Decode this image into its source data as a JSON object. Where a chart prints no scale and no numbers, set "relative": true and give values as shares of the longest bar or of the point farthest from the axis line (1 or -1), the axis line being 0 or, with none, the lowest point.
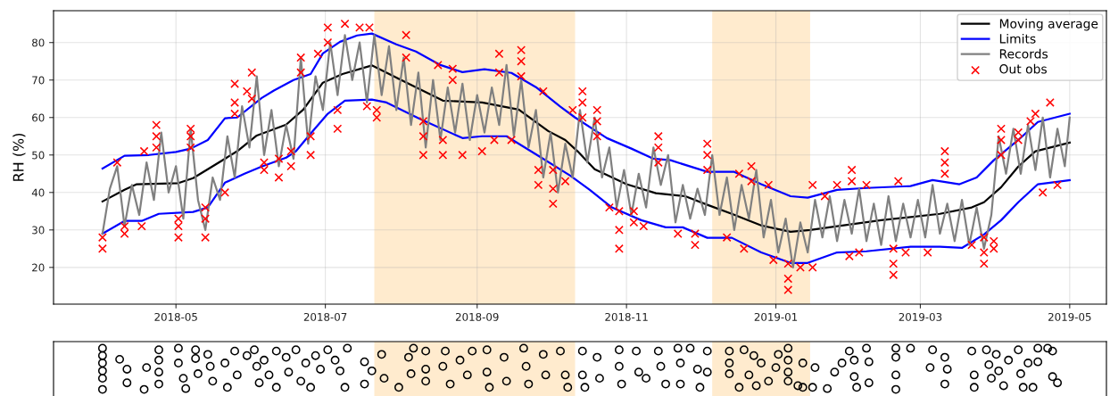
{
  "chart_data": [
    {
      "type": "line",
      "ylabel": "RH (%)",
      "xlim": [
        "2018-03-12",
        "2019-05-16"
      ],
      "ylim": [
        10.2,
        88.5
      ],
      "xticks": [
        "2018-05",
        "2018-07",
        "2018-09",
        "2018-11",
        "2019-01",
        "2019-03",
        "2019-05"
      ],
      "yticks": [
        20,
        30,
        40,
        50,
        60,
        70,
        80
      ],
      "grid": true,
      "legend": "top right",
      "bands": [
        {
          "axis": "x",
          "from": "2018-07-21",
          "to": "2018-10-11",
          "color": "#ffdead"
        },
        {
          "axis": "x",
          "from": "2018-12-06",
          "to": "2019-01-15",
          "color": "#ffdead"
        }
      ],
      "series": [
        {
          "name": "Moving average",
          "type": "line",
          "color": "#000000",
          "x": [
            "2018-04-01",
            "2018-04-10",
            "2018-04-15",
            "2018-05-02",
            "2018-05-08",
            "2018-05-14",
            "2018-05-26",
            "2018-06-03",
            "2018-06-15",
            "2018-06-22",
            "2018-06-30",
            "2018-07-08",
            "2018-07-20",
            "2018-08-01",
            "2018-08-18",
            "2018-09-03",
            "2018-09-18",
            "2018-09-30",
            "2018-10-07",
            "2018-10-12",
            "2018-10-19",
            "2018-11-01",
            "2018-11-13",
            "2018-11-25",
            "2018-12-04",
            "2018-12-14",
            "2018-12-26",
            "2019-01-07",
            "2019-01-15",
            "2019-02-13",
            "2019-03-09",
            "2019-03-22",
            "2019-03-27",
            "2019-04-03",
            "2019-04-10",
            "2019-04-17",
            "2019-05-01"
          ],
          "values": [
            37.6,
            40.7,
            42.2,
            42.5,
            43.8,
            46.2,
            51,
            55.2,
            58.1,
            62.1,
            69.3,
            71.6,
            73.9,
            70,
            64.5,
            64,
            62.1,
            56.4,
            54,
            51,
            46.2,
            42.2,
            39.8,
            39,
            36.7,
            34.3,
            31.2,
            29.5,
            30,
            32.6,
            34.3,
            36,
            37.4,
            41.4,
            46.9,
            51,
            53.3
          ]
        },
        {
          "name": "Limits",
          "type": "line",
          "color": "#0000ff",
          "x": [
            "2018-04-01",
            "2018-04-10",
            "2018-04-20",
            "2018-05-01",
            "2018-05-07",
            "2018-05-14",
            "2018-05-21",
            "2018-05-26",
            "2018-06-05",
            "2018-06-10",
            "2018-06-18",
            "2018-06-25",
            "2018-06-30",
            "2018-07-07",
            "2018-07-14",
            "2018-07-20",
            "2018-07-30",
            "2018-08-07",
            "2018-08-17",
            "2018-08-26",
            "2018-09-04",
            "2018-09-15",
            "2018-09-25",
            "2018-10-05",
            "2018-10-11",
            "2018-10-24",
            "2018-11-03",
            "2018-11-12",
            "2018-11-19",
            "2018-12-04",
            "2018-12-15",
            "2018-12-26",
            "2019-01-07",
            "2019-01-14",
            "2019-01-26",
            "2019-02-07",
            "2019-02-25",
            "2019-03-06",
            "2019-03-17",
            "2019-03-24",
            "2019-03-31",
            "2019-04-10",
            "2019-04-18",
            "2019-05-01"
          ],
          "values": [
            46.4,
            49.8,
            50,
            50.8,
            51.7,
            54,
            59.8,
            60,
            65.2,
            67.2,
            70,
            71.6,
            77.1,
            80.2,
            81.9,
            82.4,
            79.5,
            77.6,
            74,
            72.1,
            72.9,
            71.9,
            68.1,
            62.9,
            60,
            54.5,
            51.7,
            49,
            48.6,
            45.5,
            45.5,
            42.2,
            39,
            38.6,
            40.7,
            41.2,
            41.7,
            43.3,
            42.2,
            44,
            48.6,
            54,
            58.8,
            61
          ]
        },
        {
          "type": "line",
          "color": "#0000ff",
          "x": [
            "2018-04-01",
            "2018-04-10",
            "2018-04-17",
            "2018-04-24",
            "2018-05-08",
            "2018-05-14",
            "2018-05-21",
            "2018-05-29",
            "2018-06-05",
            "2018-06-15",
            "2018-06-19",
            "2018-06-25",
            "2018-07-02",
            "2018-07-09",
            "2018-07-20",
            "2018-07-26",
            "2018-08-08",
            "2018-08-26",
            "2018-09-03",
            "2018-09-13",
            "2018-09-25",
            "2018-10-09",
            "2018-10-17",
            "2018-10-26",
            "2018-11-07",
            "2018-11-17",
            "2018-11-24",
            "2018-12-04",
            "2018-12-14",
            "2018-12-26",
            "2019-01-07",
            "2019-01-14",
            "2019-01-26",
            "2019-02-07",
            "2019-02-25",
            "2019-03-09",
            "2019-03-18",
            "2019-03-27",
            "2019-04-03",
            "2019-04-10",
            "2019-04-18",
            "2019-05-01"
          ],
          "values": [
            29,
            32.4,
            32.4,
            34.3,
            34.8,
            36,
            42.6,
            45,
            46.9,
            49.3,
            51,
            55.7,
            61,
            64.5,
            64.8,
            64,
            59.8,
            54.5,
            55,
            55,
            50.2,
            44.5,
            40.7,
            36,
            32.6,
            30.7,
            30.7,
            27.9,
            27.9,
            24,
            21.2,
            21.2,
            24,
            24.3,
            25.5,
            25.5,
            25.2,
            28.8,
            32.6,
            37.4,
            42.2,
            43.3
          ]
        },
        {
          "name": "Records",
          "type": "line",
          "color": "#808080",
          "x": [
            "2018-04-01",
            "2018-04-04",
            "2018-04-07",
            "2018-04-10",
            "2018-04-13",
            "2018-04-16",
            "2018-04-19",
            "2018-04-22",
            "2018-04-25",
            "2018-04-28",
            "2018-05-01",
            "2018-05-04",
            "2018-05-07",
            "2018-05-10",
            "2018-05-13",
            "2018-05-16",
            "2018-05-19",
            "2018-05-22",
            "2018-05-25",
            "2018-05-28",
            "2018-05-31",
            "2018-06-03",
            "2018-06-06",
            "2018-06-09",
            "2018-06-12",
            "2018-06-15",
            "2018-06-18",
            "2018-06-21",
            "2018-06-24",
            "2018-06-27",
            "2018-06-30",
            "2018-07-03",
            "2018-07-06",
            "2018-07-09",
            "2018-07-12",
            "2018-07-15",
            "2018-07-18",
            "2018-07-21",
            "2018-07-24",
            "2018-07-27",
            "2018-07-30",
            "2018-08-02",
            "2018-08-05",
            "2018-08-08",
            "2018-08-11",
            "2018-08-14",
            "2018-08-17",
            "2018-08-20",
            "2018-08-23",
            "2018-08-26",
            "2018-08-29",
            "2018-09-01",
            "2018-09-04",
            "2018-09-07",
            "2018-09-10",
            "2018-09-13",
            "2018-09-16",
            "2018-09-19",
            "2018-09-22",
            "2018-09-25",
            "2018-09-28",
            "2018-10-01",
            "2018-10-04",
            "2018-10-07",
            "2018-10-10",
            "2018-10-13",
            "2018-10-16",
            "2018-10-19",
            "2018-10-22",
            "2018-10-25",
            "2018-10-28",
            "2018-10-31",
            "2018-11-03",
            "2018-11-06",
            "2018-11-09",
            "2018-11-12",
            "2018-11-15",
            "2018-11-18",
            "2018-11-21",
            "2018-11-24",
            "2018-11-27",
            "2018-11-30",
            "2018-12-03",
            "2018-12-06",
            "2018-12-09",
            "2018-12-12",
            "2018-12-15",
            "2018-12-18",
            "2018-12-21",
            "2018-12-24",
            "2018-12-27",
            "2018-12-30",
            "2019-01-02",
            "2019-01-05",
            "2019-01-08",
            "2019-01-11",
            "2019-01-14",
            "2019-01-17",
            "2019-01-20",
            "2019-01-23",
            "2019-01-26",
            "2019-01-29",
            "2019-02-01",
            "2019-02-04",
            "2019-02-07",
            "2019-02-10",
            "2019-02-13",
            "2019-02-16",
            "2019-02-19",
            "2019-02-22",
            "2019-02-25",
            "2019-02-28",
            "2019-03-03",
            "2019-03-06",
            "2019-03-09",
            "2019-03-12",
            "2019-03-15",
            "2019-03-18",
            "2019-03-21",
            "2019-03-24",
            "2019-03-27",
            "2019-03-30",
            "2019-04-02",
            "2019-04-05",
            "2019-04-08",
            "2019-04-11",
            "2019-04-14",
            "2019-04-17",
            "2019-04-20",
            "2019-04-23",
            "2019-04-26",
            "2019-04-29",
            "2019-05-01"
          ],
          "values": [
            29,
            41,
            47,
            31,
            42,
            34,
            48,
            38,
            56,
            40,
            47,
            33,
            57,
            38,
            30,
            44,
            38,
            55,
            44,
            63,
            52,
            71,
            50,
            62,
            47,
            58,
            49,
            76,
            53,
            71,
            62,
            80,
            66,
            82,
            70,
            80,
            64,
            82,
            66,
            79,
            62,
            76,
            58,
            72,
            52,
            70,
            54,
            68,
            56,
            69,
            54,
            66,
            56,
            68,
            58,
            74,
            55,
            70,
            52,
            62,
            44,
            56,
            40,
            53,
            44,
            62,
            48,
            60,
            44,
            52,
            36,
            46,
            34,
            45,
            36,
            52,
            42,
            50,
            32,
            42,
            33,
            41,
            34,
            50,
            34,
            44,
            30,
            42,
            33,
            46,
            28,
            38,
            24,
            33,
            20,
            32,
            24,
            38,
            28,
            39,
            27,
            38,
            29,
            41,
            27,
            37,
            26,
            39,
            27,
            37,
            28,
            38,
            28,
            42,
            29,
            37,
            27,
            38,
            26,
            36,
            25,
            34,
            55,
            45,
            57,
            45,
            58,
            46,
            60,
            44,
            57,
            47,
            60
          ]
        },
        {
          "name": "Out obs",
          "type": "scatter",
          "marker": "cross",
          "color": "#ff0000",
          "x": [
            "2018-04-01",
            "2018-04-01",
            "2018-04-07",
            "2018-04-10",
            "2018-04-10",
            "2018-04-17",
            "2018-04-18",
            "2018-04-23",
            "2018-04-23",
            "2018-04-23",
            "2018-05-02",
            "2018-05-02",
            "2018-05-02",
            "2018-05-07",
            "2018-05-07",
            "2018-05-07",
            "2018-05-13",
            "2018-05-13",
            "2018-05-13",
            "2018-05-21",
            "2018-05-25",
            "2018-05-25",
            "2018-05-25",
            "2018-05-30",
            "2018-06-01",
            "2018-06-01",
            "2018-06-06",
            "2018-06-06",
            "2018-06-12",
            "2018-06-12",
            "2018-06-17",
            "2018-06-17",
            "2018-06-21",
            "2018-06-21",
            "2018-06-25",
            "2018-06-25",
            "2018-06-28",
            "2018-07-02",
            "2018-07-02",
            "2018-07-06",
            "2018-07-06",
            "2018-07-09",
            "2018-07-15",
            "2018-07-18",
            "2018-07-19",
            "2018-07-22",
            "2018-07-22",
            "2018-08-03",
            "2018-08-03",
            "2018-08-10",
            "2018-08-10",
            "2018-08-10",
            "2018-08-16",
            "2018-08-18",
            "2018-08-18",
            "2018-08-22",
            "2018-08-22",
            "2018-08-26",
            "2018-09-03",
            "2018-09-08",
            "2018-09-10",
            "2018-09-10",
            "2018-09-15",
            "2018-09-19",
            "2018-09-19",
            "2018-09-19",
            "2018-09-26",
            "2018-09-26",
            "2018-09-28",
            "2018-10-02",
            "2018-10-02",
            "2018-10-02",
            "2018-10-07",
            "2018-10-10",
            "2018-10-14",
            "2018-10-14",
            "2018-10-14",
            "2018-10-20",
            "2018-10-20",
            "2018-10-20",
            "2018-10-25",
            "2018-10-29",
            "2018-10-29",
            "2018-10-29",
            "2018-11-04",
            "2018-11-04",
            "2018-11-08",
            "2018-11-14",
            "2018-11-14",
            "2018-11-14",
            "2018-11-22",
            "2018-11-29",
            "2018-11-29",
            "2018-12-04",
            "2018-12-04",
            "2018-12-04",
            "2018-12-12",
            "2018-12-17",
            "2018-12-19",
            "2018-12-22",
            "2018-12-22",
            "2018-12-29",
            "2018-12-31",
            "2019-01-06",
            "2019-01-06",
            "2019-01-06",
            "2019-01-11",
            "2019-01-16",
            "2019-01-16",
            "2019-01-21",
            "2019-01-26",
            "2019-01-31",
            "2019-02-01",
            "2019-02-01",
            "2019-02-04",
            "2019-02-07",
            "2019-02-18",
            "2019-02-18",
            "2019-02-18",
            "2019-02-20",
            "2019-02-23",
            "2019-03-04",
            "2019-03-11",
            "2019-03-11",
            "2019-03-11",
            "2019-03-22",
            "2019-03-27",
            "2019-03-27",
            "2019-03-27",
            "2019-03-31",
            "2019-03-31",
            "2019-04-03",
            "2019-04-03",
            "2019-04-03",
            "2019-04-10",
            "2019-04-10",
            "2019-04-15",
            "2019-04-17",
            "2019-04-20",
            "2019-04-23",
            "2019-04-26"
          ],
          "values": [
            25,
            28,
            48,
            29,
            31,
            31,
            51,
            52,
            55,
            58,
            28,
            31,
            33,
            52,
            55,
            57,
            28,
            33,
            36,
            40,
            61,
            64,
            69,
            67,
            65,
            72,
            46,
            48,
            44,
            49,
            47,
            51,
            72,
            76,
            50,
            55,
            77,
            80,
            84,
            57,
            62,
            85,
            84,
            63,
            84,
            60,
            62,
            76,
            82,
            50,
            55,
            59,
            74,
            50,
            54,
            70,
            73,
            50,
            51,
            54,
            72,
            77,
            54,
            71,
            75,
            78,
            42,
            46,
            67,
            37,
            41,
            46,
            43,
            62,
            60,
            64,
            67,
            55,
            59,
            62,
            36,
            25,
            30,
            35,
            32,
            35,
            31,
            48,
            52,
            55,
            29,
            26,
            29,
            46,
            50,
            53,
            28,
            45,
            25,
            43,
            47,
            42,
            22,
            14,
            17,
            21,
            20,
            42,
            20,
            39,
            42,
            23,
            43,
            46,
            24,
            42,
            18,
            21,
            25,
            43,
            24,
            24,
            45,
            48,
            51,
            26,
            21,
            24,
            28,
            25,
            27,
            50,
            54,
            57,
            54,
            56,
            59,
            61,
            40,
            64,
            42
          ]
        }
      ]
    },
    {
      "type": "scatter",
      "relative": true,
      "marker": "circle",
      "xlim": [
        "2018-03-12",
        "2019-05-16"
      ],
      "bands": [
        {
          "axis": "x",
          "from": "2018-07-21",
          "to": "2018-10-11",
          "color": "#ffdead"
        },
        {
          "axis": "x",
          "from": "2018-12-06",
          "to": "2019-01-15",
          "color": "#ffdead"
        }
      ],
      "series": [
        {
          "color": "#000000",
          "x": [
            "2018-04-01",
            "2018-04-01",
            "2018-04-01",
            "2018-04-01",
            "2018-04-01",
            "2018-04-01",
            "2018-04-08",
            "2018-04-11",
            "2018-04-11",
            "2018-04-18",
            "2018-04-19",
            "2018-04-24",
            "2018-04-24",
            "2018-04-24",
            "2018-04-24",
            "2018-05-02",
            "2018-05-02",
            "2018-05-04",
            "2018-05-05",
            "2018-05-09",
            "2018-05-09",
            "2018-05-10",
            "2018-05-14",
            "2018-05-15",
            "2018-05-16",
            "2018-05-21",
            "2018-05-22",
            "2018-05-25",
            "2018-05-26",
            "2018-05-30",
            "2018-06-02",
            "2018-06-03",
            "2018-06-04",
            "2018-06-06",
            "2018-06-08",
            "2018-06-11",
            "2018-06-11",
            "2018-06-15",
            "2018-06-16",
            "2018-06-19",
            "2018-06-21",
            "2018-06-23",
            "2018-06-25",
            "2018-06-27",
            "2018-06-29",
            "2018-07-02",
            "2018-07-05",
            "2018-07-07",
            "2018-07-09",
            "2018-07-10",
            "2018-07-17",
            "2018-07-17",
            "2018-07-20",
            "2018-07-24",
            "2018-07-25",
            "2018-07-31",
            "2018-08-04",
            "2018-08-05",
            "2018-08-06",
            "2018-08-11",
            "2018-08-11",
            "2018-08-11",
            "2018-08-18",
            "2018-08-19",
            "2018-08-21",
            "2018-08-25",
            "2018-08-28",
            "2018-08-30",
            "2018-09-05",
            "2018-09-05",
            "2018-09-06",
            "2018-09-12",
            "2018-09-13",
            "2018-09-20",
            "2018-09-21",
            "2018-09-22",
            "2018-09-28",
            "2018-09-29",
            "2018-10-05",
            "2018-10-07",
            "2018-10-08",
            "2018-10-14",
            "2018-10-14",
            "2018-10-15",
            "2018-10-20",
            "2018-10-21",
            "2018-10-29",
            "2018-10-29",
            "2018-10-30",
            "2018-11-05",
            "2018-11-06",
            "2018-11-09",
            "2018-11-14",
            "2018-11-15",
            "2018-11-17",
            "2018-11-22",
            "2018-11-23",
            "2018-11-23",
            "2018-11-27",
            "2018-11-30",
            "2018-12-01",
            "2018-12-04",
            "2018-12-04",
            "2018-12-13",
            "2018-12-13",
            "2018-12-13",
            "2018-12-17",
            "2018-12-19",
            "2018-12-21",
            "2018-12-23",
            "2018-12-24",
            "2018-12-26",
            "2018-12-29",
            "2019-01-01",
            "2019-01-02",
            "2019-01-06",
            "2019-01-06",
            "2019-01-06",
            "2019-01-06",
            "2019-01-10",
            "2019-01-12",
            "2019-01-12",
            "2019-01-16",
            "2019-01-17",
            "2019-01-22",
            "2019-01-25",
            "2019-01-28",
            "2019-01-31",
            "2019-02-02",
            "2019-02-02",
            "2019-02-03",
            "2019-02-07",
            "2019-02-08",
            "2019-02-08",
            "2019-02-19",
            "2019-02-19",
            "2019-02-19",
            "2019-02-19",
            "2019-02-25",
            "2019-03-05",
            "2019-03-06",
            "2019-03-11",
            "2019-03-11",
            "2019-03-12",
            "2019-03-22",
            "2019-03-23",
            "2019-03-23",
            "2019-03-28",
            "2019-03-29",
            "2019-03-30",
            "2019-04-01",
            "2019-04-02",
            "2019-04-04",
            "2019-04-06",
            "2019-04-10",
            "2019-04-11",
            "2019-04-12",
            "2019-04-14",
            "2019-04-16",
            "2019-04-18",
            "2019-04-18",
            "2019-04-22",
            "2019-04-24",
            "2019-04-24",
            "2019-04-26"
          ],
          "values": [
            1,
            0.82,
            0.64,
            0.45,
            0.27,
            0,
            0.73,
            0.49,
            0.16,
            0,
            0.53,
            0.96,
            0.71,
            0.42,
            0.13,
            1,
            0.64,
            0.27,
            0.02,
            0.96,
            0.75,
            0.38,
            0.85,
            0.56,
            0.2,
            0.64,
            0.05,
            0.93,
            0.35,
            0.82,
            0.96,
            0.56,
            0.16,
            0.71,
            0.35,
            0.93,
            0.05,
            0.78,
            0.42,
            0.96,
            0.2,
            0.64,
            0.05,
            0.82,
            0.49,
            0.96,
            0.71,
            0.45,
            0.05,
            1,
            0.67,
            0.13,
            0.45,
            0.85,
            0.27,
            0.05,
            0.78,
            0.38,
            1,
            0.93,
            0.49,
            0.2,
            0.56,
            0.93,
            0.13,
            0.71,
            0.35,
            0.93,
            0.96,
            0.42,
            0.05,
            0.78,
            0.2,
            1,
            0.56,
            0.13,
            0.85,
            0.35,
            0.93,
            0.35,
            0.05,
            0.93,
            0.35,
            0.05,
            0.78,
            0.27,
            0.96,
            0.56,
            0.13,
            0.93,
            0.42,
            0.27,
            0.93,
            0.56,
            0.13,
            1,
            0.64,
            0.13,
            1,
            0.49,
            0.05,
            0.93,
            0.42,
            0.93,
            0.64,
            0.38,
            0.05,
            0.96,
            0.35,
            0.82,
            0.09,
            0.64,
            0.2,
            0.53,
            0.85,
            1,
            0.71,
            0.42,
            0.2,
            0.09,
            0.64,
            0.05,
            0.05,
            0.53,
            0.02,
            0.42,
            0.64,
            0.93,
            0.71,
            0.31,
            0.05,
            1,
            0.67,
            0.16,
            1,
            0.78,
            0.35,
            0,
            1,
            0.53,
            0.96,
            0.78,
            0.13,
            0.49,
            0.93,
            0.35,
            0.05,
            0.96,
            0.6,
            0.27,
            0.85,
            0.45,
            0.09,
            0.71,
            0.96,
            0.38,
            0.05,
            0.64,
            0.05,
            1,
            0.67,
            1,
            0.93,
            0.31,
            0.16
          ]
        }
      ]
    }
  ]
}
